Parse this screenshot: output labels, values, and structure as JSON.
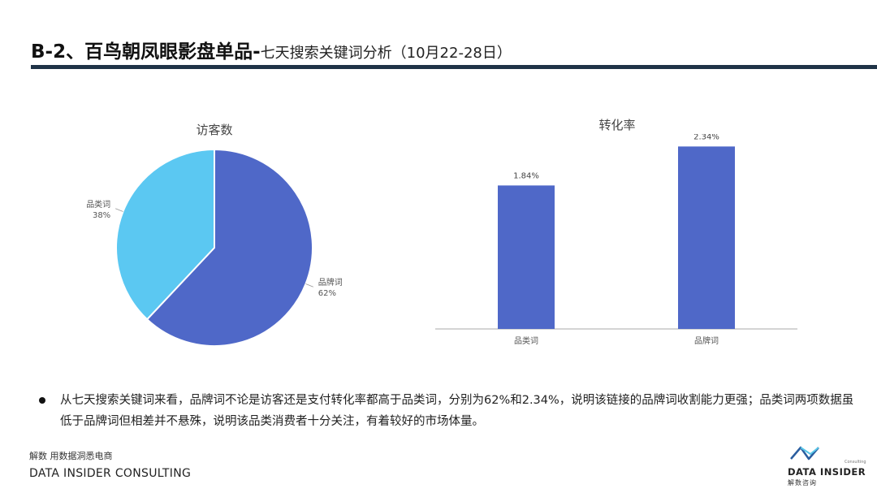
{
  "header": {
    "title_main": "B-2、百鸟朝凤眼影盘单品-",
    "title_sub": "七天搜索关键词分析（10月22-28日）"
  },
  "chart_data": [
    {
      "type": "pie",
      "title": "访客数",
      "slices": [
        {
          "label": "品牌词",
          "value": 62,
          "value_label": "62%",
          "color": "#4f68c8"
        },
        {
          "label": "品类词",
          "value": 38,
          "value_label": "38%",
          "color": "#5bc8f2"
        }
      ]
    },
    {
      "type": "bar",
      "title": "转化率",
      "categories": [
        "品类词",
        "品牌词"
      ],
      "values": [
        1.84,
        2.34
      ],
      "value_labels": [
        "1.84%",
        "2.34%"
      ],
      "ylim": [
        0,
        2.5
      ],
      "color": "#4f68c8"
    }
  ],
  "summary": {
    "text": "从七天搜索关键词来看，品牌词不论是访客还是支付转化率都高于品类词，分别为62%和2.34%，说明该链接的品牌词收割能力更强；品类词两项数据虽低于品牌词但相差并不悬殊，说明该品类消费者十分关注，有着较好的市场体量。"
  },
  "footer": {
    "tagline": "解数 用数据洞悉电商",
    "company": "DATA INSIDER CONSULTING"
  },
  "logo": {
    "word": "DATA INSIDER",
    "cn": "解数咨询",
    "small": "Consulting"
  }
}
